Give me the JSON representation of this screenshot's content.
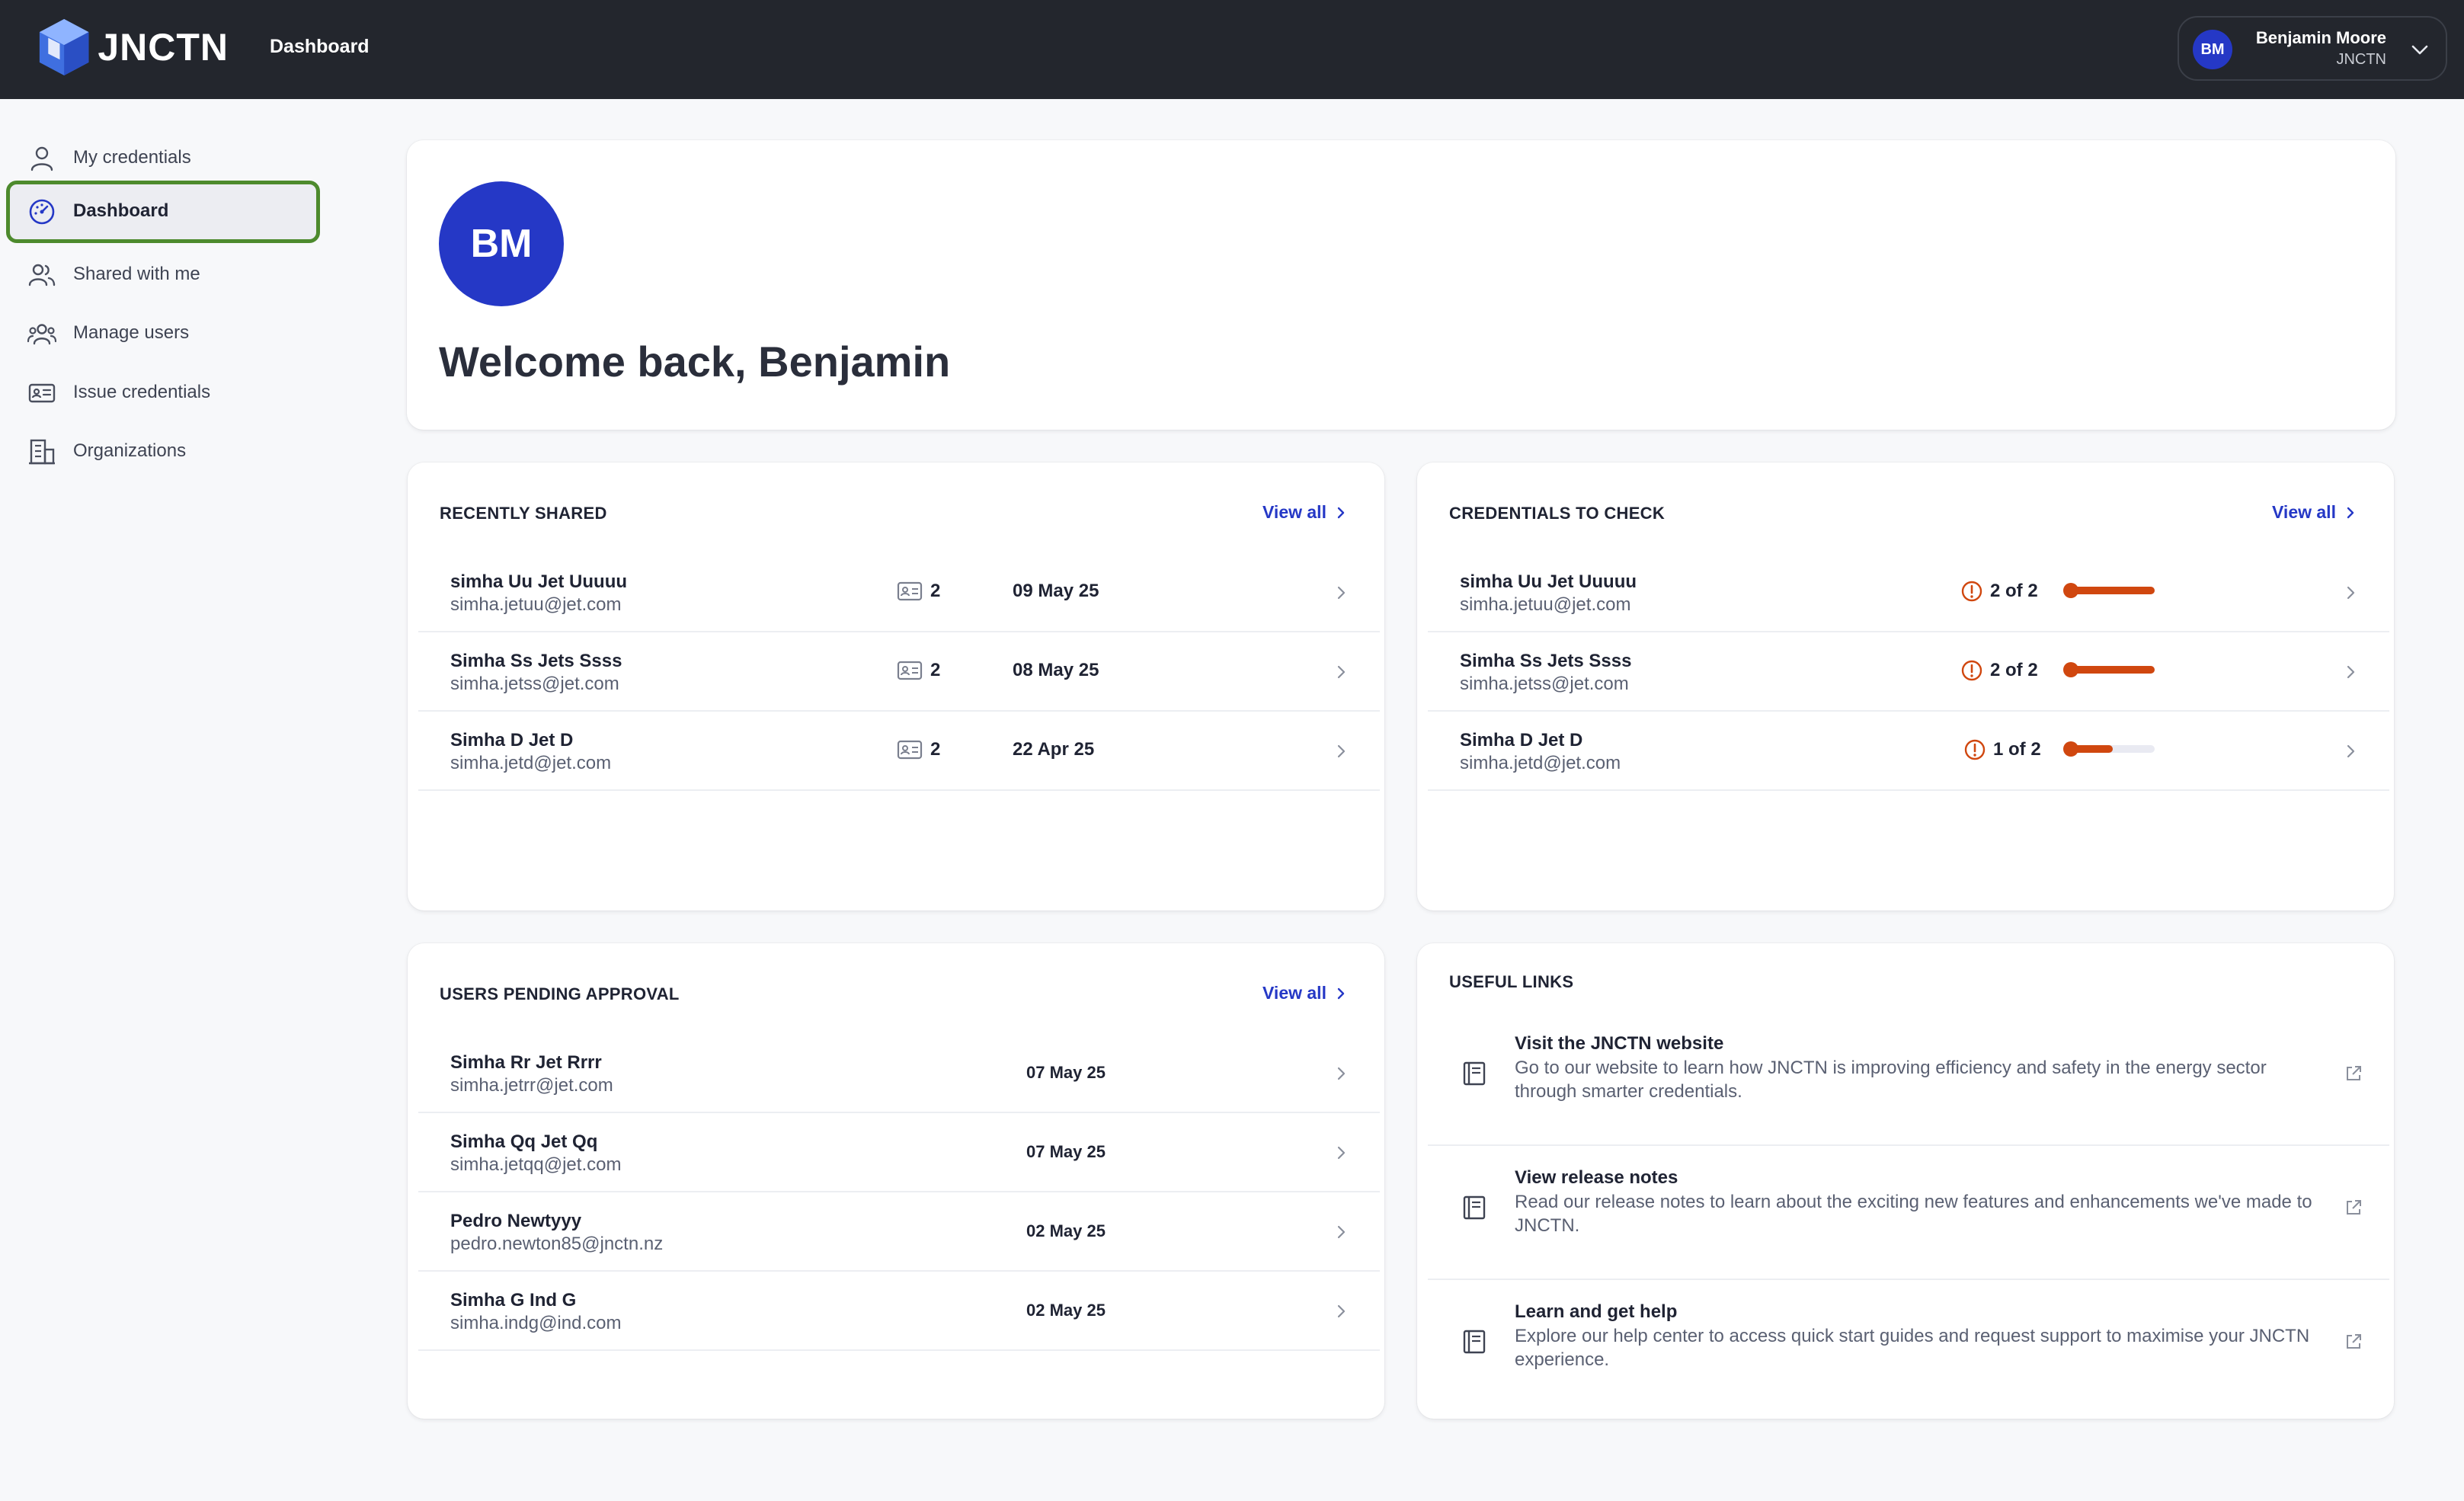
{
  "header": {
    "logo_text": "JNCTN",
    "title": "Dashboard",
    "user": {
      "initials": "BM",
      "name": "Benjamin Moore",
      "org": "JNCTN"
    }
  },
  "sidebar": {
    "items": [
      {
        "label": "My credentials",
        "icon": "user-icon",
        "active": false
      },
      {
        "label": "Dashboard",
        "icon": "dashboard-icon",
        "active": true
      },
      {
        "label": "Shared with me",
        "icon": "users-icon",
        "active": false
      },
      {
        "label": "Manage users",
        "icon": "user-group-icon",
        "active": false
      },
      {
        "label": "Issue credentials",
        "icon": "id-card-icon",
        "active": false
      },
      {
        "label": "Organizations",
        "icon": "building-icon",
        "active": false
      }
    ]
  },
  "welcome": {
    "initials": "BM",
    "text": "Welcome back, Benjamin"
  },
  "recently_shared": {
    "title": "RECENTLY SHARED",
    "view_all": "View all",
    "rows": [
      {
        "name": "simha Uu Jet Uuuuu",
        "email": "simha.jetuu@jet.com",
        "count": "2",
        "date": "09 May 25"
      },
      {
        "name": "Simha Ss Jets Ssss",
        "email": "simha.jetss@jet.com",
        "count": "2",
        "date": "08 May 25"
      },
      {
        "name": "Simha D Jet D",
        "email": "simha.jetd@jet.com",
        "count": "2",
        "date": "22 Apr 25"
      }
    ]
  },
  "credentials_to_check": {
    "title": "CREDENTIALS TO CHECK",
    "view_all": "View all",
    "rows": [
      {
        "name": "simha Uu Jet Uuuuu",
        "email": "simha.jetuu@jet.com",
        "status": "2 of 2",
        "progress": 1.0
      },
      {
        "name": "Simha Ss Jets Ssss",
        "email": "simha.jetss@jet.com",
        "status": "2 of 2",
        "progress": 1.0
      },
      {
        "name": "Simha D Jet D",
        "email": "simha.jetd@jet.com",
        "status": "1 of 2",
        "progress": 0.5
      }
    ],
    "progress_color": "#d0470f"
  },
  "users_pending": {
    "title": "USERS PENDING APPROVAL",
    "view_all": "View all",
    "rows": [
      {
        "name": "Simha Rr Jet Rrrr",
        "email": "simha.jetrr@jet.com",
        "date": "07 May 25"
      },
      {
        "name": "Simha Qq Jet Qq",
        "email": "simha.jetqq@jet.com",
        "date": "07 May 25"
      },
      {
        "name": "Pedro Newtyyy",
        "email": "pedro.newton85@jnctn.nz",
        "date": "02 May 25"
      },
      {
        "name": "Simha G Ind G",
        "email": "simha.indg@ind.com",
        "date": "02 May 25"
      }
    ]
  },
  "useful_links": {
    "title": "USEFUL LINKS",
    "links": [
      {
        "title": "Visit the JNCTN website",
        "desc": "Go to our website to learn how JNCTN is improving efficiency and safety in the energy sector through smarter credentials."
      },
      {
        "title": "View release notes",
        "desc": "Read our release notes to learn about the exciting new features and enhancements we've made to JNCTN."
      },
      {
        "title": "Learn and get help",
        "desc": "Explore our help center to access quick start guides and request support to maximise your JNCTN experience."
      }
    ]
  },
  "colors": {
    "brand": "#2538c6",
    "topbar": "#23262d",
    "active_outline": "#4d8a2d",
    "warning": "#d0470f"
  }
}
